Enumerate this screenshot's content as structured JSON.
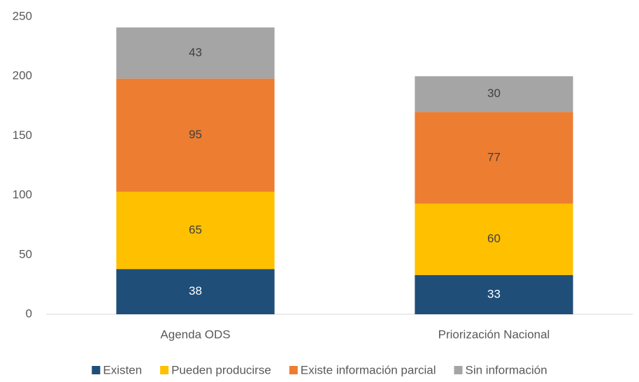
{
  "chart_data": {
    "type": "stacked_bar",
    "categories": [
      "Agenda ODS",
      "Priorización Nacional"
    ],
    "series": [
      {
        "name": "Existen",
        "color": "#1f4e79",
        "values": [
          38,
          33
        ]
      },
      {
        "name": "Pueden producirse",
        "color": "#ffc000",
        "values": [
          65,
          60
        ]
      },
      {
        "name": "Existe información parcial",
        "color": "#ed7d31",
        "values": [
          95,
          77
        ]
      },
      {
        "name": "Sin información",
        "color": "#a5a5a5",
        "values": [
          43,
          30
        ]
      }
    ],
    "ylim": [
      0,
      250
    ],
    "yticks": [
      0,
      50,
      100,
      150,
      200,
      250
    ],
    "grid": false,
    "legend": "bottom"
  }
}
